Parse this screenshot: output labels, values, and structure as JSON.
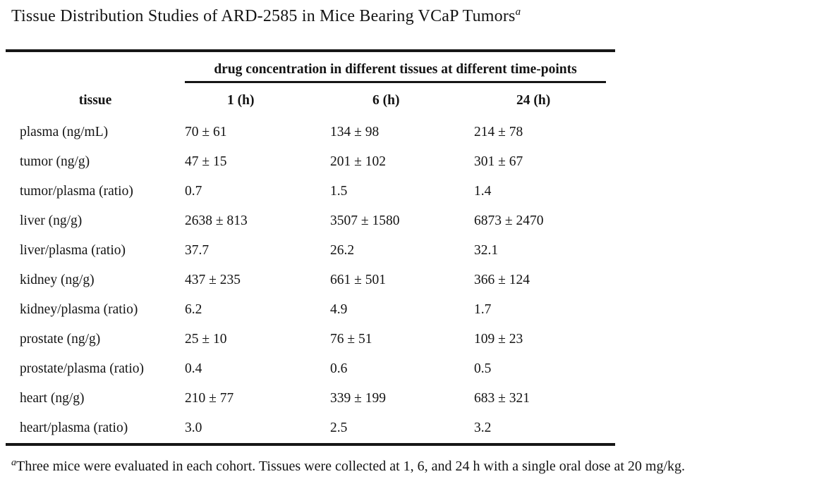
{
  "page": {
    "title": "Tissue Distribution Studies of ARD-2585 in Mice Bearing VCaP Tumors",
    "title_superscript": "a"
  },
  "chart_data": {
    "type": "table",
    "title": "Tissue Distribution Studies of ARD-2585 in Mice Bearing VCaP Tumors",
    "span_header": "drug concentration in different tissues at different time-points",
    "columns": [
      "tissue",
      "1 (h)",
      "6 (h)",
      "24 (h)"
    ],
    "rows": [
      [
        "plasma (ng/mL)",
        "70 ± 61",
        "134 ± 98",
        "214 ± 78"
      ],
      [
        "tumor (ng/g)",
        "47 ± 15",
        "201 ± 102",
        "301 ± 67"
      ],
      [
        "tumor/plasma (ratio)",
        "0.7",
        "1.5",
        "1.4"
      ],
      [
        "liver (ng/g)",
        "2638 ± 813",
        "3507 ± 1580",
        "6873 ± 2470"
      ],
      [
        "liver/plasma (ratio)",
        "37.7",
        "26.2",
        "32.1"
      ],
      [
        "kidney (ng/g)",
        "437 ± 235",
        "661 ± 501",
        "366 ± 124"
      ],
      [
        "kidney/plasma (ratio)",
        "6.2",
        "4.9",
        "1.7"
      ],
      [
        "prostate (ng/g)",
        "25 ± 10",
        "76 ± 51",
        "109 ± 23"
      ],
      [
        "prostate/plasma (ratio)",
        "0.4",
        "0.6",
        "0.5"
      ],
      [
        "heart (ng/g)",
        "210 ± 77",
        "339 ± 199",
        "683 ± 321"
      ],
      [
        "heart/plasma (ratio)",
        "3.0",
        "2.5",
        "3.2"
      ]
    ]
  },
  "footnote": {
    "marker": "a",
    "text": "Three mice were evaluated in each cohort. Tissues were collected at 1, 6, and 24 h with a single oral dose at 20 mg/kg."
  },
  "colors": {
    "background": "#ffffff",
    "text": "#141414",
    "rule": "#161616"
  }
}
